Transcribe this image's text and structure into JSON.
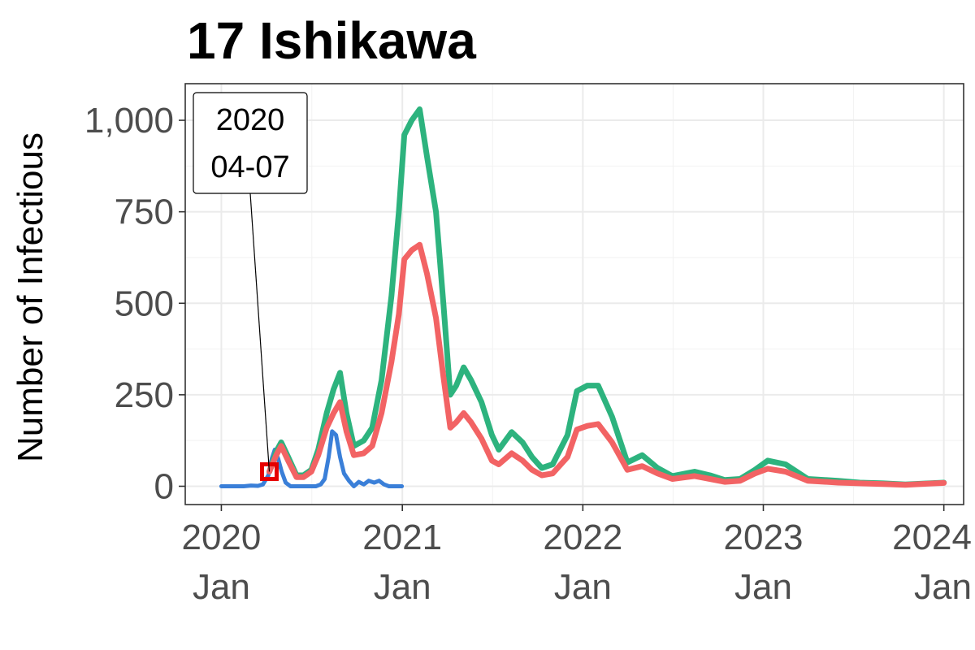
{
  "chart_data": {
    "type": "line",
    "title": "17 Ishikawa",
    "xlabel": "",
    "ylabel": "Number of Infectious",
    "ylim": [
      -50,
      1100
    ],
    "yticks": [
      0,
      250,
      500,
      750,
      1000
    ],
    "ytick_labels": [
      "0",
      "250",
      "500",
      "750",
      "1,000"
    ],
    "xlim": [
      "2019-10-20",
      "2024-02-10"
    ],
    "xticks": [
      "2020-01-01",
      "2021-01-01",
      "2022-01-01",
      "2023-01-01",
      "2024-01-01"
    ],
    "xtick_labels": [
      {
        "year": "2020",
        "month": "Jan"
      },
      {
        "year": "2021",
        "month": "Jan"
      },
      {
        "year": "2022",
        "month": "Jan"
      },
      {
        "year": "2023",
        "month": "Jan"
      },
      {
        "year": "2024",
        "month": "Jan"
      }
    ],
    "grid": true,
    "legend": "none",
    "series": [
      {
        "color": "#2db37e",
        "points": [
          [
            "2020-04-07",
            40
          ],
          [
            "2020-04-21",
            95
          ],
          [
            "2020-05-01",
            120
          ],
          [
            "2020-05-15",
            80
          ],
          [
            "2020-06-01",
            30
          ],
          [
            "2020-06-15",
            30
          ],
          [
            "2020-07-01",
            45
          ],
          [
            "2020-07-15",
            100
          ],
          [
            "2020-08-01",
            200
          ],
          [
            "2020-08-15",
            265
          ],
          [
            "2020-08-28",
            310
          ],
          [
            "2020-09-10",
            200
          ],
          [
            "2020-09-25",
            110
          ],
          [
            "2020-10-15",
            125
          ],
          [
            "2020-11-01",
            160
          ],
          [
            "2020-11-20",
            290
          ],
          [
            "2020-12-10",
            520
          ],
          [
            "2020-12-25",
            750
          ],
          [
            "2021-01-05",
            960
          ],
          [
            "2021-01-20",
            1000
          ],
          [
            "2021-02-05",
            1030
          ],
          [
            "2021-02-20",
            900
          ],
          [
            "2021-03-10",
            750
          ],
          [
            "2021-03-25",
            500
          ],
          [
            "2021-04-08",
            250
          ],
          [
            "2021-04-20",
            275
          ],
          [
            "2021-05-05",
            325
          ],
          [
            "2021-05-20",
            290
          ],
          [
            "2021-06-10",
            230
          ],
          [
            "2021-07-01",
            140
          ],
          [
            "2021-07-15",
            100
          ],
          [
            "2021-08-10",
            148
          ],
          [
            "2021-09-01",
            120
          ],
          [
            "2021-09-20",
            80
          ],
          [
            "2021-10-10",
            50
          ],
          [
            "2021-11-01",
            60
          ],
          [
            "2021-12-01",
            140
          ],
          [
            "2021-12-20",
            260
          ],
          [
            "2022-01-10",
            275
          ],
          [
            "2022-02-01",
            275
          ],
          [
            "2022-03-01",
            190
          ],
          [
            "2022-04-01",
            65
          ],
          [
            "2022-05-01",
            85
          ],
          [
            "2022-06-01",
            50
          ],
          [
            "2022-07-01",
            28
          ],
          [
            "2022-08-15",
            40
          ],
          [
            "2022-09-15",
            30
          ],
          [
            "2022-10-15",
            17
          ],
          [
            "2022-11-15",
            20
          ],
          [
            "2022-12-15",
            45
          ],
          [
            "2023-01-10",
            70
          ],
          [
            "2023-02-15",
            60
          ],
          [
            "2023-04-01",
            20
          ],
          [
            "2023-06-01",
            15
          ],
          [
            "2023-07-15",
            10
          ],
          [
            "2023-09-01",
            8
          ],
          [
            "2023-10-15",
            5
          ],
          [
            "2023-12-01",
            8
          ],
          [
            "2024-01-01",
            10
          ]
        ]
      },
      {
        "color": "#f26364",
        "points": [
          [
            "2020-04-07",
            40
          ],
          [
            "2020-04-21",
            85
          ],
          [
            "2020-05-01",
            110
          ],
          [
            "2020-05-15",
            70
          ],
          [
            "2020-06-01",
            25
          ],
          [
            "2020-06-15",
            25
          ],
          [
            "2020-07-01",
            40
          ],
          [
            "2020-07-15",
            85
          ],
          [
            "2020-08-01",
            160
          ],
          [
            "2020-08-15",
            200
          ],
          [
            "2020-08-28",
            230
          ],
          [
            "2020-09-10",
            150
          ],
          [
            "2020-09-25",
            85
          ],
          [
            "2020-10-15",
            90
          ],
          [
            "2020-11-01",
            110
          ],
          [
            "2020-11-20",
            200
          ],
          [
            "2020-12-10",
            340
          ],
          [
            "2020-12-25",
            470
          ],
          [
            "2021-01-05",
            620
          ],
          [
            "2021-01-20",
            645
          ],
          [
            "2021-02-05",
            660
          ],
          [
            "2021-02-20",
            580
          ],
          [
            "2021-03-10",
            460
          ],
          [
            "2021-03-25",
            300
          ],
          [
            "2021-04-08",
            160
          ],
          [
            "2021-04-20",
            175
          ],
          [
            "2021-05-05",
            200
          ],
          [
            "2021-05-20",
            175
          ],
          [
            "2021-06-10",
            130
          ],
          [
            "2021-07-01",
            70
          ],
          [
            "2021-07-15",
            60
          ],
          [
            "2021-08-10",
            90
          ],
          [
            "2021-09-01",
            70
          ],
          [
            "2021-09-20",
            45
          ],
          [
            "2021-10-10",
            30
          ],
          [
            "2021-11-01",
            35
          ],
          [
            "2021-12-01",
            80
          ],
          [
            "2021-12-20",
            155
          ],
          [
            "2022-01-10",
            165
          ],
          [
            "2022-02-01",
            170
          ],
          [
            "2022-03-01",
            120
          ],
          [
            "2022-04-01",
            45
          ],
          [
            "2022-05-01",
            55
          ],
          [
            "2022-06-01",
            35
          ],
          [
            "2022-07-01",
            20
          ],
          [
            "2022-08-15",
            28
          ],
          [
            "2022-09-15",
            20
          ],
          [
            "2022-10-15",
            12
          ],
          [
            "2022-11-15",
            15
          ],
          [
            "2022-12-15",
            35
          ],
          [
            "2023-01-10",
            48
          ],
          [
            "2023-02-15",
            40
          ],
          [
            "2023-04-01",
            15
          ],
          [
            "2023-06-01",
            10
          ],
          [
            "2023-07-15",
            8
          ],
          [
            "2023-09-01",
            6
          ],
          [
            "2023-10-15",
            4
          ],
          [
            "2023-12-01",
            7
          ],
          [
            "2024-01-01",
            9
          ]
        ]
      },
      {
        "color": "#3a7fd8",
        "points": [
          [
            "2020-01-01",
            0
          ],
          [
            "2020-02-15",
            0
          ],
          [
            "2020-03-01",
            2
          ],
          [
            "2020-03-15",
            1
          ],
          [
            "2020-03-25",
            5
          ],
          [
            "2020-04-05",
            30
          ],
          [
            "2020-04-12",
            75
          ],
          [
            "2020-04-18",
            100
          ],
          [
            "2020-04-25",
            75
          ],
          [
            "2020-05-02",
            40
          ],
          [
            "2020-05-10",
            10
          ],
          [
            "2020-05-20",
            0
          ],
          [
            "2020-06-15",
            0
          ],
          [
            "2020-07-10",
            0
          ],
          [
            "2020-07-20",
            5
          ],
          [
            "2020-07-28",
            20
          ],
          [
            "2020-08-05",
            80
          ],
          [
            "2020-08-12",
            150
          ],
          [
            "2020-08-20",
            140
          ],
          [
            "2020-08-28",
            80
          ],
          [
            "2020-09-05",
            35
          ],
          [
            "2020-09-15",
            15
          ],
          [
            "2020-09-25",
            0
          ],
          [
            "2020-10-05",
            12
          ],
          [
            "2020-10-15",
            5
          ],
          [
            "2020-10-25",
            15
          ],
          [
            "2020-11-05",
            10
          ],
          [
            "2020-11-15",
            15
          ],
          [
            "2020-11-25",
            5
          ],
          [
            "2020-12-05",
            0
          ],
          [
            "2020-12-31",
            0
          ]
        ]
      }
    ],
    "highlight_point": {
      "date": "2020-04-07",
      "value": 40,
      "color": "#e60000"
    },
    "annotations": [
      {
        "date": "2020-04-07",
        "value": 40,
        "lines": [
          "2020",
          "04-07"
        ]
      }
    ]
  }
}
